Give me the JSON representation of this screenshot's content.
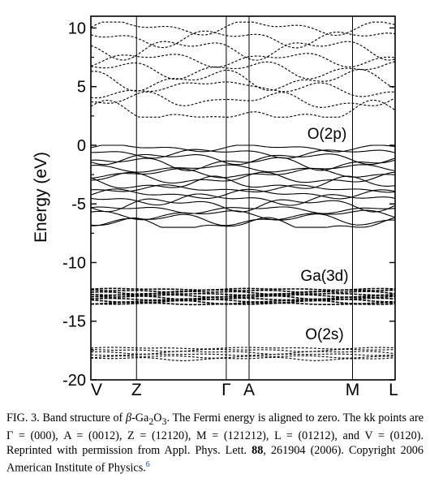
{
  "chart_data": {
    "type": "line",
    "ylabel": "Energy (eV)",
    "xlabel": "",
    "ylim": [
      -20,
      11
    ],
    "y_ticks": [
      "10",
      "5",
      "0",
      "-5",
      "-10",
      "-15",
      "-20"
    ],
    "y_tick_values": [
      10,
      5,
      0,
      -5,
      -10,
      -15,
      -20
    ],
    "k_points": [
      {
        "label": "V",
        "x": 0.0
      },
      {
        "label": "Z",
        "x": 0.15
      },
      {
        "label": "Γ",
        "x": 0.445
      },
      {
        "label": "A",
        "x": 0.52
      },
      {
        "label": "M",
        "x": 0.86
      },
      {
        "label": "L",
        "x": 1.0
      }
    ],
    "annotations": [
      {
        "text": "O(2p)",
        "energy": 1.1
      },
      {
        "text": "Ga(3d)",
        "energy": -11.0
      },
      {
        "text": "O(2s)",
        "energy": -16.0
      }
    ],
    "band_groups": [
      {
        "name": "conduction bands",
        "style": "dashed",
        "energy_range": [
          2.4,
          10.5
        ],
        "count": 9,
        "minimum_at": "Γ",
        "minimum": 2.4
      },
      {
        "name": "O(2p) valence bands",
        "style": "solid",
        "energy_range": [
          -7.0,
          0.0
        ],
        "count": 16
      },
      {
        "name": "Ga(3d) bands",
        "style": "dashed",
        "energy_range": [
          -13.6,
          -12.2
        ],
        "count": 10
      },
      {
        "name": "O(2s) bands",
        "style": "dashed",
        "energy_range": [
          -18.3,
          -17.2
        ],
        "count": 6
      }
    ]
  },
  "caption": {
    "fig_label": "FIG. 3.",
    "text1": " Band structure of ",
    "beta": "β",
    "formula_ga": "-Ga",
    "sub1": "2",
    "formula_o": "O",
    "sub2": "3",
    "text2": ". The Fermi energy is aligned to zero. The kk points are Γ = (000), A = (0012), Z = (12120), M = (121212), L = (01212), and V = (0120). Reprinted with permission from Appl. Phys. Lett. ",
    "volume": "88",
    "text3": ", 261904 (2006). Copyright 2006 American Institute of Physics.",
    "footnote": "6"
  }
}
